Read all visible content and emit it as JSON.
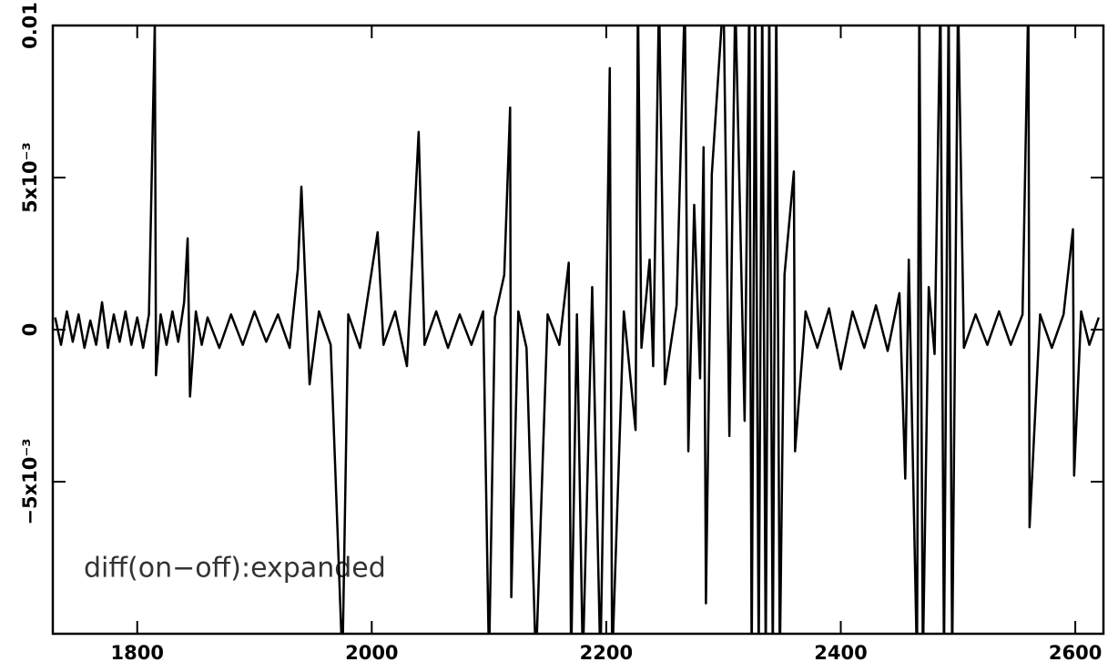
{
  "chart_data": {
    "type": "line",
    "annotation": "diff(on−off):expanded",
    "color": "#000000",
    "x": [
      1730,
      1735,
      1740,
      1745,
      1750,
      1755,
      1760,
      1765,
      1770,
      1775,
      1780,
      1785,
      1790,
      1795,
      1800,
      1805,
      1810,
      1815,
      1816,
      1820,
      1825,
      1830,
      1835,
      1840,
      1843,
      1845,
      1850,
      1855,
      1860,
      1870,
      1880,
      1890,
      1900,
      1910,
      1920,
      1930,
      1937,
      1940,
      1947,
      1955,
      1965,
      1975,
      1980,
      1990,
      2005,
      2010,
      2020,
      2030,
      2040,
      2045,
      2055,
      2065,
      2075,
      2085,
      2095,
      2100,
      2105,
      2113,
      2118,
      2119,
      2125,
      2132,
      2140,
      2150,
      2160,
      2168,
      2170,
      2175,
      2180,
      2188,
      2195,
      2200,
      2203,
      2205,
      2215,
      2225,
      2227,
      2230,
      2237,
      2240,
      2245,
      2250,
      2260,
      2267,
      2270,
      2275,
      2280,
      2283,
      2285,
      2290,
      2300,
      2305,
      2310,
      2318,
      2322,
      2324,
      2327,
      2330,
      2333,
      2336,
      2339,
      2342,
      2345,
      2348,
      2352,
      2360,
      2361,
      2370,
      2380,
      2390,
      2400,
      2410,
      2420,
      2430,
      2440,
      2450,
      2455,
      2458,
      2465,
      2467,
      2470,
      2475,
      2480,
      2485,
      2488,
      2492,
      2495,
      2500,
      2505,
      2515,
      2525,
      2535,
      2545,
      2555,
      2560,
      2561,
      2570,
      2580,
      2590,
      2598,
      2599,
      2605,
      2612,
      2620
    ],
    "values": [
      0.0004,
      -0.0005,
      0.0006,
      -0.0004,
      0.0005,
      -0.0006,
      0.0003,
      -0.0005,
      0.0009,
      -0.0006,
      0.0005,
      -0.0004,
      0.0006,
      -0.0005,
      0.0004,
      -0.0006,
      0.0005,
      0.0101,
      -0.0015,
      0.0005,
      -0.0005,
      0.0006,
      -0.0004,
      0.0009,
      0.003,
      -0.0022,
      0.0006,
      -0.0005,
      0.0004,
      -0.0006,
      0.0005,
      -0.0005,
      0.0006,
      -0.0004,
      0.0005,
      -0.0006,
      0.002,
      0.0047,
      -0.0018,
      0.0006,
      -0.0005,
      -0.011,
      0.0005,
      -0.0006,
      0.0032,
      -0.0005,
      0.0006,
      -0.0012,
      0.0065,
      -0.0005,
      0.0006,
      -0.0006,
      0.0005,
      -0.0005,
      0.0006,
      -0.011,
      0.0004,
      0.0018,
      0.0073,
      -0.0088,
      0.0006,
      -0.0006,
      -0.011,
      0.0005,
      -0.0005,
      0.0022,
      -0.011,
      0.0005,
      -0.011,
      0.0014,
      -0.011,
      0.0005,
      0.0086,
      -0.011,
      0.0006,
      -0.0033,
      0.011,
      -0.0006,
      0.0023,
      -0.0012,
      0.011,
      -0.0018,
      0.0008,
      0.011,
      -0.004,
      0.0041,
      -0.0016,
      0.006,
      -0.009,
      0.0051,
      0.011,
      -0.0035,
      0.011,
      -0.003,
      0.011,
      -0.011,
      0.011,
      -0.011,
      0.011,
      -0.011,
      0.011,
      -0.011,
      0.011,
      -0.011,
      0.0018,
      0.0052,
      -0.004,
      0.0006,
      -0.0006,
      0.0007,
      -0.0013,
      0.0006,
      -0.0006,
      0.0008,
      -0.0007,
      0.0012,
      -0.0049,
      0.0023,
      -0.011,
      0.011,
      -0.011,
      0.0014,
      -0.0008,
      0.011,
      -0.011,
      0.011,
      -0.011,
      0.011,
      -0.0006,
      0.0005,
      -0.0005,
      0.0006,
      -0.0005,
      0.0005,
      0.011,
      -0.0065,
      0.0005,
      -0.0006,
      0.0005,
      0.0033,
      -0.0048,
      0.0006,
      -0.0005,
      0.0004
    ],
    "xlim": [
      1728,
      2624
    ],
    "xticks": [
      1800,
      2000,
      2200,
      2400,
      2600
    ],
    "ylim": [
      -0.01,
      0.01
    ],
    "yticks": [
      {
        "value": -0.005,
        "label": "−5x10⁻³"
      },
      0,
      {
        "value": 0.005,
        "label": "5x10⁻³"
      },
      0.01
    ]
  }
}
